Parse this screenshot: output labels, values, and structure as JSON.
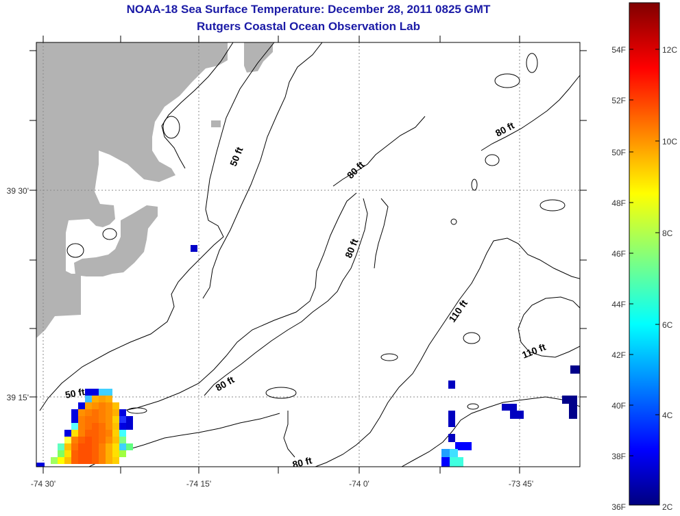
{
  "header": {
    "title": "NOAA-18 Sea Surface Temperature:  December 28, 2011 0825 GMT",
    "subtitle": "Rutgers Coastal Ocean Observation Lab"
  },
  "axes": {
    "x_ticks": [
      "-74 30'",
      "-74 15'",
      "-74 0'",
      "-73 45'"
    ],
    "y_ticks": [
      "39 30'",
      "39 15'"
    ]
  },
  "contour_labels": [
    "50 ft",
    "80 ft",
    "80 ft",
    "80 ft",
    "80 ft",
    "80 ft",
    "110 ft",
    "110 ft",
    "50 ft"
  ],
  "colorbar": {
    "f_labels": [
      "54F",
      "52F",
      "50F",
      "48F",
      "46F",
      "44F",
      "42F",
      "40F",
      "38F",
      "36F"
    ],
    "c_labels": [
      "12C",
      "10C",
      "8C",
      "6C",
      "4C",
      "2C"
    ],
    "range_c": [
      2,
      13
    ]
  },
  "colors": {
    "title": "#1a1aa6",
    "land": "#b3b3b3",
    "grid": "#888888"
  }
}
